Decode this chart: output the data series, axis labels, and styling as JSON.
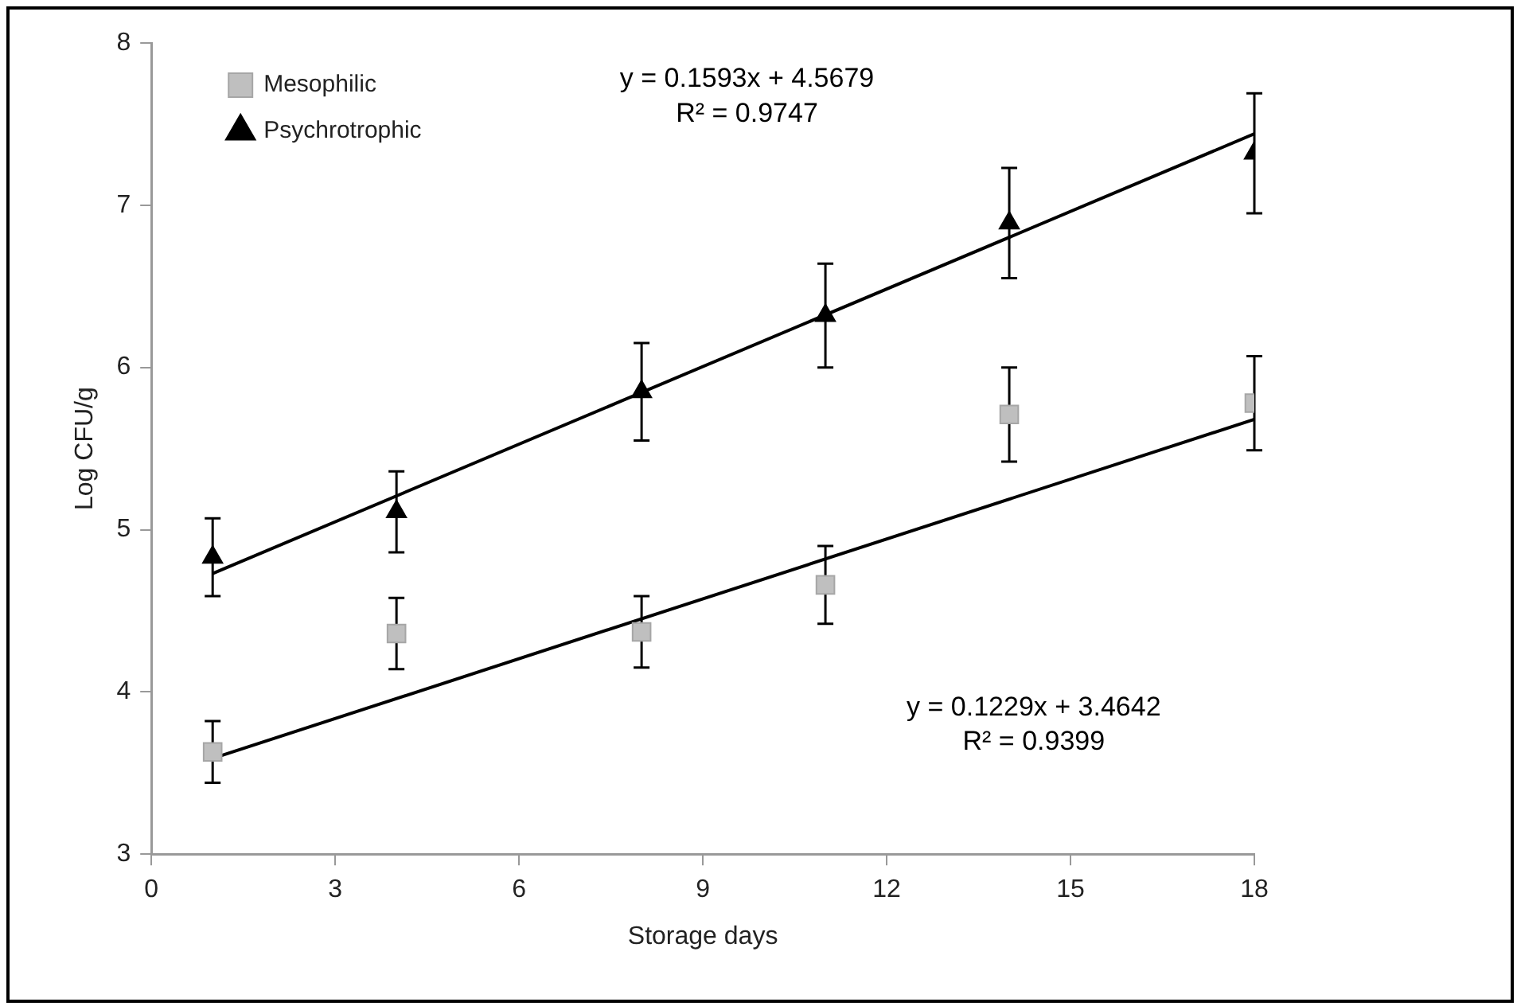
{
  "chart_data": {
    "type": "scatter",
    "xlabel": "Storage days",
    "ylabel": "Log CFU/g",
    "xlim": [
      0,
      18
    ],
    "xticks": [
      0,
      3,
      6,
      9,
      12,
      15,
      18
    ],
    "ylim": [
      3,
      8
    ],
    "yticks": [
      3,
      4,
      5,
      6,
      7,
      8
    ],
    "grid": false,
    "legend": "top left",
    "series": [
      {
        "name": "Mesophilic",
        "type": "scatter",
        "marker": "square",
        "color": "#bfbfbf",
        "x": [
          1,
          4,
          8,
          11,
          14,
          18
        ],
        "values": [
          3.63,
          4.36,
          4.37,
          4.66,
          5.71,
          5.78
        ],
        "errors": [
          0.19,
          0.22,
          0.22,
          0.24,
          0.29,
          0.29
        ]
      },
      {
        "name": "Psychrotrophic",
        "type": "scatter",
        "marker": "triangle",
        "color": "#000000",
        "x": [
          1,
          4,
          8,
          11,
          14,
          18
        ],
        "values": [
          4.83,
          5.11,
          5.85,
          6.32,
          6.89,
          7.32
        ],
        "errors": [
          0.24,
          0.25,
          0.3,
          0.32,
          0.34,
          0.37
        ]
      },
      {
        "type": "line",
        "marker": "none",
        "color": "#000000",
        "x": [
          1,
          18
        ],
        "values": [
          4.73,
          7.44
        ]
      },
      {
        "type": "line",
        "marker": "none",
        "color": "#000000",
        "x": [
          1,
          18
        ],
        "values": [
          3.59,
          5.68
        ]
      }
    ],
    "annotations": [
      "y = 0.1593x + 4.5679",
      "R² = 0.9747",
      "y = 0.1229x + 3.4642",
      "R² = 0.9399"
    ]
  }
}
